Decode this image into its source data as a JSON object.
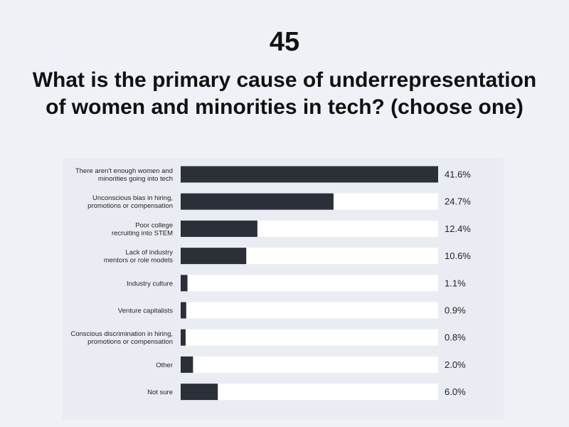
{
  "header": {
    "number": "45",
    "title": "What is the primary cause of underrepresentation of women and minorities in tech? (choose one)"
  },
  "colors": {
    "bar": "#2b3038",
    "track": "#ffffff",
    "text": "#222222"
  },
  "chart_data": {
    "type": "bar",
    "orientation": "horizontal",
    "title": "What is the primary cause of underrepresentation of women and minorities in tech? (choose one)",
    "categories": [
      [
        "There aren't enough women and",
        "minorities going into tech"
      ],
      [
        "Unconscious bias in hiring,",
        "promotions or compensation"
      ],
      [
        "Poor college",
        "recruiting into STEM"
      ],
      [
        "Lack of industry",
        "mentors or role models"
      ],
      [
        "Industry culture"
      ],
      [
        "Venture capitalists"
      ],
      [
        "Conscious discrimination in hiring,",
        "promotions or compensation"
      ],
      [
        "Other"
      ],
      [
        "Not sure"
      ]
    ],
    "values": [
      41.6,
      24.7,
      12.4,
      10.6,
      1.1,
      0.9,
      0.8,
      2.0,
      6.0
    ],
    "value_labels": [
      "41.6%",
      "24.7%",
      "12.4%",
      "10.6%",
      "1.1%",
      "0.9%",
      "0.8%",
      "2.0%",
      "6.0%"
    ],
    "xlim": [
      0,
      41.6
    ],
    "grid": false
  }
}
